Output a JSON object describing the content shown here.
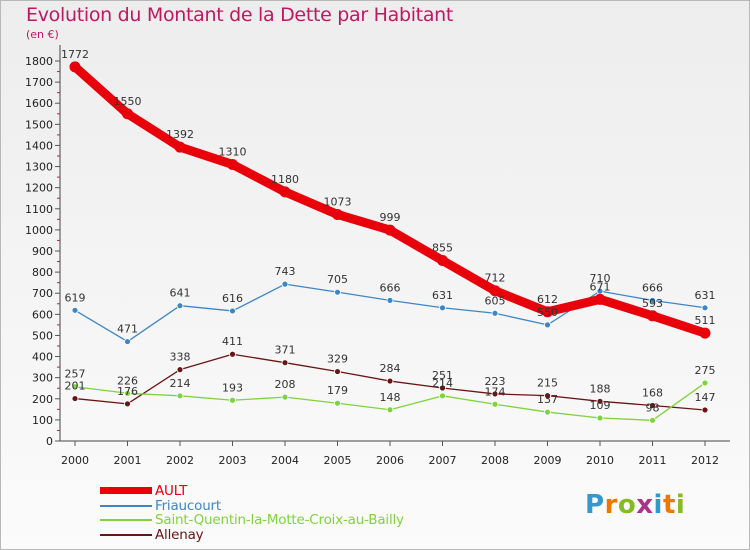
{
  "chart_data": {
    "type": "line",
    "title": "Evolution du Montant de la Dette par Habitant",
    "subtitle": "(en €)",
    "x": [
      "2000",
      "2001",
      "2002",
      "2003",
      "2004",
      "2005",
      "2006",
      "2007",
      "2008",
      "2009",
      "2010",
      "2011",
      "2012"
    ],
    "ylim": [
      0,
      1800
    ],
    "yticks": [
      0,
      100,
      200,
      300,
      400,
      500,
      600,
      700,
      800,
      900,
      1000,
      1100,
      1200,
      1300,
      1400,
      1500,
      1600,
      1700,
      1800
    ],
    "grid": false,
    "legend_position": "bottom-left",
    "series": [
      {
        "name": "AULT",
        "color": "#e8000b",
        "values": [
          1772,
          1550,
          1392,
          1310,
          1180,
          1073,
          999,
          855,
          712,
          612,
          671,
          593,
          511
        ]
      },
      {
        "name": "Friaucourt",
        "color": "#3d86c6",
        "values": [
          619,
          471,
          641,
          616,
          743,
          705,
          666,
          631,
          605,
          550,
          710,
          666,
          631
        ]
      },
      {
        "name": "Saint-Quentin-la-Motte-Croix-au-Bailly",
        "color": "#7ed43a",
        "values": [
          257,
          226,
          214,
          193,
          208,
          179,
          148,
          214,
          174,
          137,
          109,
          98,
          275
        ]
      },
      {
        "name": "Allenay",
        "color": "#6b1414",
        "values": [
          201,
          176,
          338,
          411,
          371,
          329,
          284,
          251,
          223,
          215,
          188,
          168,
          147
        ]
      }
    ],
    "data_labels": [
      [
        "1772",
        "1550",
        "1392",
        "1310",
        "1180",
        "1073",
        "999",
        "855",
        "712",
        "612",
        "671",
        "593",
        "511"
      ],
      [
        "619",
        "471",
        "641",
        "616",
        "743",
        "705",
        "666",
        "631",
        "605",
        "550",
        "710",
        "666",
        "631"
      ],
      [
        "257",
        "226",
        "214",
        "193",
        "208",
        "179",
        "148",
        "214",
        "174",
        "137",
        "109",
        "98",
        "275"
      ],
      [
        "201",
        "176",
        "338",
        "411",
        "371",
        "329",
        "284",
        "251",
        "223",
        "215",
        "188",
        "168",
        "147"
      ]
    ]
  },
  "logo": {
    "text": "Proxiti",
    "colors": [
      "#3399cc",
      "#ee7700",
      "#88bb22",
      "#aa3388",
      "#3399cc",
      "#ee7700",
      "#88bb22"
    ]
  }
}
